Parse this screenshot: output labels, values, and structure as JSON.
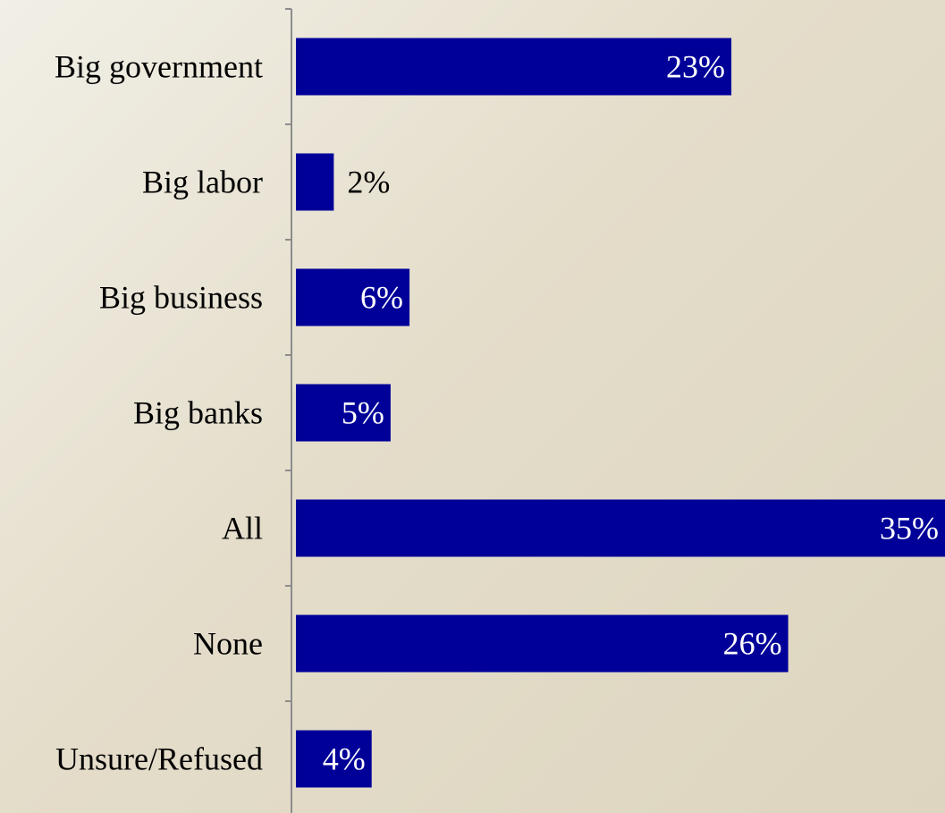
{
  "chart_data": {
    "type": "bar",
    "orientation": "horizontal",
    "categories": [
      "Big government",
      "Big labor",
      "Big business",
      "Big banks",
      "All",
      "None",
      "Unsure/Refused"
    ],
    "values": [
      23,
      2,
      6,
      5,
      35,
      26,
      4
    ],
    "value_labels": [
      "23%",
      "2%",
      "6%",
      "5%",
      "35%",
      "26%",
      "4%"
    ],
    "xlim": [
      0,
      34
    ],
    "grid": false,
    "legend": "none",
    "bar_color": "#000099",
    "inside_label_color": "#ffffff",
    "outside_label_color": "#000000"
  }
}
